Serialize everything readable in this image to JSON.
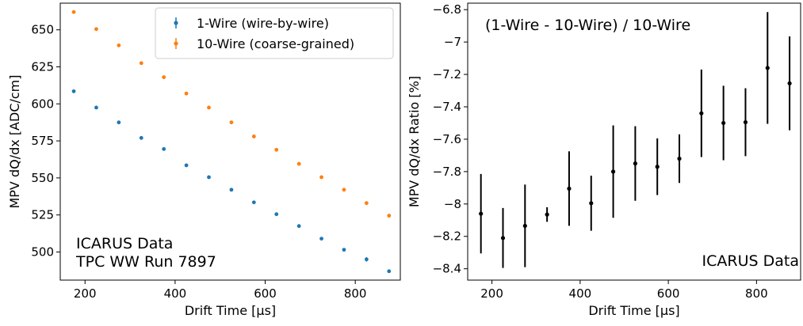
{
  "chart_data": [
    {
      "type": "scatter",
      "xlabel": "Drift Time [µs]",
      "ylabel": "MPV dQ/dx [ADC/cm]",
      "xlim": [
        145,
        900
      ],
      "ylim": [
        481,
        668
      ],
      "xticks": [
        200,
        400,
        600,
        800
      ],
      "yticks": [
        500,
        525,
        550,
        575,
        600,
        625,
        650
      ],
      "legend_position": "top-right",
      "annotation": [
        "ICARUS Data",
        "TPC WW Run 7897"
      ],
      "x": [
        175,
        225,
        275,
        325,
        375,
        425,
        475,
        525,
        575,
        625,
        675,
        725,
        775,
        825,
        875
      ],
      "series": [
        {
          "name": "1-Wire (wire-by-wire)",
          "color": "#1f77b4",
          "values": [
            608.5,
            597.5,
            587.5,
            577.0,
            569.5,
            558.5,
            550.5,
            542.0,
            533.5,
            525.5,
            517.5,
            509.0,
            501.5,
            495.0,
            487.0
          ],
          "errors": [
            1.2,
            1.0,
            1.0,
            1.0,
            1.0,
            1.0,
            1.0,
            1.0,
            1.0,
            1.0,
            1.0,
            1.0,
            1.0,
            1.5,
            1.2
          ]
        },
        {
          "name": "10-Wire (coarse-grained)",
          "color": "#ff7f0e",
          "values": [
            662.0,
            650.5,
            639.5,
            627.5,
            618.0,
            607.0,
            597.5,
            587.5,
            578.0,
            569.0,
            559.5,
            550.5,
            542.0,
            533.0,
            524.5
          ],
          "errors": [
            1.0,
            1.0,
            1.0,
            1.0,
            1.0,
            1.0,
            1.0,
            1.0,
            1.0,
            1.0,
            1.0,
            1.0,
            1.0,
            1.0,
            1.0
          ]
        }
      ]
    },
    {
      "type": "scatter",
      "xlabel": "Drift Time [µs]",
      "ylabel": "MPV dQ/dx Ratio [%]",
      "xlim": [
        145,
        900
      ],
      "ylim": [
        -8.47,
        -6.76
      ],
      "xticks": [
        200,
        400,
        600,
        800
      ],
      "yticks": [
        -8.4,
        -8.2,
        -8.0,
        -7.8,
        -7.6,
        -7.4,
        -7.2,
        -7.0,
        -6.8
      ],
      "title_annotation": "(1-Wire - 10-Wire) / 10-Wire",
      "annotation": [
        "ICARUS Data"
      ],
      "x": [
        175,
        225,
        275,
        325,
        375,
        425,
        475,
        525,
        575,
        625,
        675,
        725,
        775,
        825,
        875
      ],
      "series": [
        {
          "color": "#000000",
          "values": [
            -8.06,
            -8.21,
            -8.135,
            -8.065,
            -7.905,
            -7.995,
            -7.8,
            -7.75,
            -7.77,
            -7.72,
            -7.44,
            -7.5,
            -7.495,
            -7.16,
            -7.255
          ],
          "errors": [
            0.245,
            0.185,
            0.255,
            0.045,
            0.23,
            0.17,
            0.285,
            0.23,
            0.175,
            0.15,
            0.27,
            0.23,
            0.21,
            0.345,
            0.29
          ]
        }
      ]
    }
  ]
}
